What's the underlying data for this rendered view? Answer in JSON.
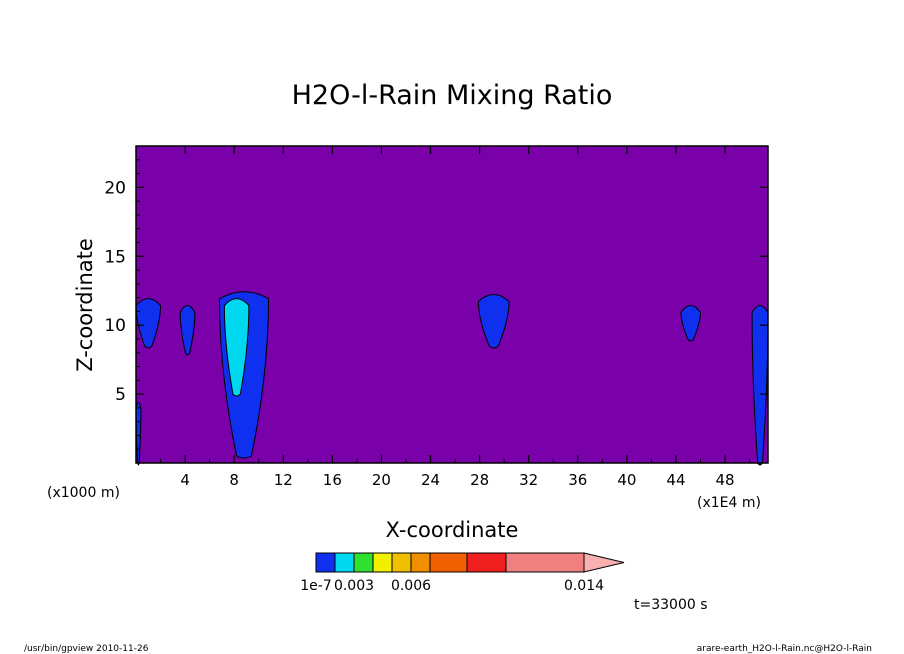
{
  "chart_data": {
    "type": "heatmap",
    "title": "H2O-l-Rain Mixing Ratio",
    "xlabel": "X-coordinate",
    "ylabel": "Z-coordinate",
    "x_unit_left": "(x1000 m)",
    "x_unit_right": "(x1E4 m)",
    "x_ticks": [
      "4",
      "8",
      "12",
      "16",
      "20",
      "24",
      "28",
      "32",
      "36",
      "40",
      "44",
      "48"
    ],
    "y_ticks": [
      "5",
      "10",
      "15",
      "20"
    ],
    "xlim": [
      0,
      51.5
    ],
    "ylim": [
      0,
      23
    ],
    "background_color": "#7a00aa",
    "colorbar": {
      "levels": [
        1e-07,
        0.002,
        0.003,
        0.004,
        0.005,
        0.006,
        0.008,
        0.01,
        0.014
      ],
      "colors": [
        "#1030f0",
        "#00d8f0",
        "#30e030",
        "#f0f000",
        "#f0c000",
        "#f09000",
        "#f06000",
        "#f02020",
        "#f08080",
        "#f8b0b0"
      ],
      "labels": [
        "1e-7",
        "0.003",
        "0.006",
        "0.014"
      ]
    },
    "time_label": "t=33000 s",
    "footer_left": "/usr/bin/gpview  2010-11-26",
    "footer_right": "arare-earth_H2O-l-Rain.nc@H2O-l-Rain",
    "regions": [
      {
        "name": "cell-left-edge",
        "x": [
          0.0,
          2.0
        ],
        "z": [
          8.5,
          12.0
        ],
        "level": 1e-07
      },
      {
        "name": "cell-4",
        "x": [
          3.6,
          4.8
        ],
        "z": [
          8.0,
          11.5
        ],
        "level": 1e-07
      },
      {
        "name": "cell-8",
        "x": [
          6.8,
          10.8
        ],
        "z": [
          0.5,
          12.5
        ],
        "level": 1e-07
      },
      {
        "name": "cell-8-core",
        "x": [
          7.2,
          9.2
        ],
        "z": [
          5.0,
          12.0
        ],
        "level": 0.002
      },
      {
        "name": "cell-29",
        "x": [
          27.9,
          30.4
        ],
        "z": [
          8.5,
          12.3
        ],
        "level": 1e-07
      },
      {
        "name": "cell-45",
        "x": [
          44.4,
          46.0
        ],
        "z": [
          9.0,
          11.5
        ],
        "level": 1e-07
      },
      {
        "name": "cell-right-edge",
        "x": [
          50.2,
          51.5
        ],
        "z": [
          0.0,
          11.5
        ],
        "level": 1e-07
      },
      {
        "name": "cell-left-bottom",
        "x": [
          0.0,
          0.4
        ],
        "z": [
          0.0,
          4.5
        ],
        "level": 1e-07
      }
    ]
  }
}
